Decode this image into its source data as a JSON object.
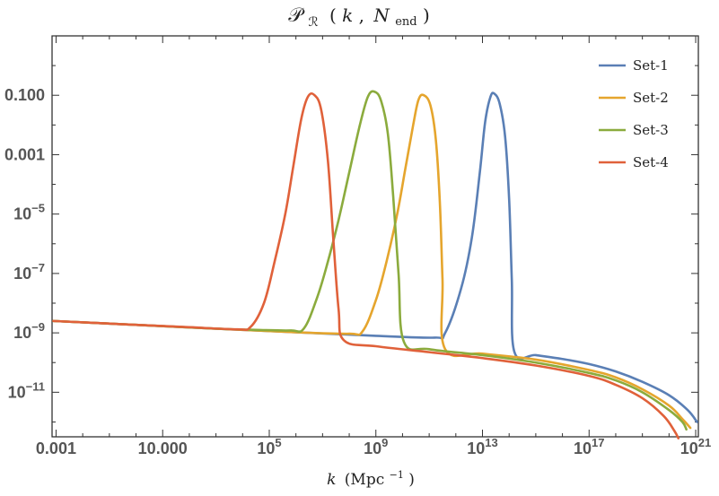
{
  "chart_data": {
    "type": "line",
    "title_math": {
      "main": "𝒫",
      "sub": "ℛ",
      "args_open": "(",
      "k": "k",
      "comma": ",",
      "N": "N",
      "N_sub": "end",
      "args_close": ")"
    },
    "xlabel": {
      "var": "k",
      "unit": "(Mpc",
      "exp": "−1",
      "close": ")"
    },
    "x_scale": "log",
    "y_scale": "log",
    "xlim_log10": [
      -3.15,
      21.1
    ],
    "ylim_log10": [
      -12.5,
      1.0
    ],
    "x_ticks": [
      {
        "log10": -3,
        "label": "0.001"
      },
      {
        "log10": 1,
        "label": "10.000"
      },
      {
        "log10": 5,
        "base": "10",
        "exp": "5"
      },
      {
        "log10": 9,
        "base": "10",
        "exp": "9"
      },
      {
        "log10": 13,
        "base": "10",
        "exp": "13"
      },
      {
        "log10": 17,
        "base": "10",
        "exp": "17"
      },
      {
        "log10": 21,
        "base": "10",
        "exp": "21"
      }
    ],
    "y_ticks": [
      {
        "log10": -1,
        "label": "0.100"
      },
      {
        "log10": -3,
        "label": "0.001"
      },
      {
        "log10": -5,
        "base": "10",
        "exp": "−5"
      },
      {
        "log10": -7,
        "base": "10",
        "exp": "−7"
      },
      {
        "log10": -9,
        "base": "10",
        "exp": "−9"
      },
      {
        "log10": -11,
        "base": "10",
        "exp": "−11"
      }
    ],
    "grid": false,
    "legend_position": "top-right",
    "series": [
      {
        "name": "Set-1",
        "color": "#5a7fb5",
        "points_log10": [
          [
            -3.1,
            -8.6
          ],
          [
            0,
            -8.73
          ],
          [
            3,
            -8.86
          ],
          [
            6,
            -8.98
          ],
          [
            9,
            -9.1
          ],
          [
            11.2,
            -9.16
          ],
          [
            11.6,
            -9.0
          ],
          [
            12.2,
            -7.5
          ],
          [
            12.6,
            -5.8
          ],
          [
            12.9,
            -3.6
          ],
          [
            13.1,
            -1.9
          ],
          [
            13.3,
            -1.05
          ],
          [
            13.45,
            -0.95
          ],
          [
            13.65,
            -1.3
          ],
          [
            13.85,
            -2.4
          ],
          [
            14.0,
            -4.5
          ],
          [
            14.1,
            -7.2
          ],
          [
            14.2,
            -9.65
          ],
          [
            15,
            -9.75
          ],
          [
            16,
            -9.88
          ],
          [
            17,
            -10.05
          ],
          [
            18,
            -10.3
          ],
          [
            19,
            -10.65
          ],
          [
            20,
            -11.1
          ],
          [
            20.7,
            -11.6
          ],
          [
            21.05,
            -12.0
          ]
        ]
      },
      {
        "name": "Set-2",
        "color": "#e5a52d",
        "points_log10": [
          [
            -3.1,
            -8.6
          ],
          [
            0,
            -8.73
          ],
          [
            3,
            -8.86
          ],
          [
            6,
            -8.98
          ],
          [
            8.0,
            -9.03
          ],
          [
            8.5,
            -8.95
          ],
          [
            9.0,
            -7.9
          ],
          [
            9.4,
            -6.6
          ],
          [
            9.8,
            -5.0
          ],
          [
            10.1,
            -3.5
          ],
          [
            10.4,
            -2.0
          ],
          [
            10.6,
            -1.15
          ],
          [
            10.8,
            -1.0
          ],
          [
            11.05,
            -1.35
          ],
          [
            11.25,
            -2.5
          ],
          [
            11.4,
            -4.6
          ],
          [
            11.5,
            -7.2
          ],
          [
            11.6,
            -9.55
          ],
          [
            13,
            -9.7
          ],
          [
            15,
            -9.9
          ],
          [
            17,
            -10.25
          ],
          [
            18,
            -10.5
          ],
          [
            19,
            -10.9
          ],
          [
            20,
            -11.45
          ],
          [
            20.5,
            -11.9
          ],
          [
            20.8,
            -12.2
          ]
        ]
      },
      {
        "name": "Set-3",
        "color": "#8bab3d",
        "points_log10": [
          [
            -3.1,
            -8.6
          ],
          [
            0,
            -8.73
          ],
          [
            3,
            -8.86
          ],
          [
            4.5,
            -8.9
          ],
          [
            5.8,
            -8.92
          ],
          [
            6.3,
            -8.85
          ],
          [
            6.8,
            -7.8
          ],
          [
            7.2,
            -6.6
          ],
          [
            7.6,
            -5.2
          ],
          [
            8.0,
            -3.6
          ],
          [
            8.4,
            -2.0
          ],
          [
            8.7,
            -1.05
          ],
          [
            8.95,
            -0.88
          ],
          [
            9.2,
            -1.2
          ],
          [
            9.45,
            -2.3
          ],
          [
            9.65,
            -4.4
          ],
          [
            9.85,
            -7.0
          ],
          [
            10.05,
            -9.3
          ],
          [
            11,
            -9.55
          ],
          [
            13,
            -9.75
          ],
          [
            15,
            -10.0
          ],
          [
            17,
            -10.35
          ],
          [
            18,
            -10.6
          ],
          [
            19,
            -11.0
          ],
          [
            20,
            -11.6
          ],
          [
            20.5,
            -12.0
          ],
          [
            20.65,
            -12.25
          ]
        ]
      },
      {
        "name": "Set-4",
        "color": "#e0613a",
        "points_log10": [
          [
            -3.1,
            -8.6
          ],
          [
            0,
            -8.73
          ],
          [
            2,
            -8.81
          ],
          [
            3.8,
            -8.88
          ],
          [
            4.3,
            -8.8
          ],
          [
            4.8,
            -8.0
          ],
          [
            5.2,
            -6.6
          ],
          [
            5.6,
            -5.0
          ],
          [
            5.9,
            -3.4
          ],
          [
            6.2,
            -1.8
          ],
          [
            6.45,
            -1.05
          ],
          [
            6.7,
            -1.0
          ],
          [
            6.95,
            -1.5
          ],
          [
            7.2,
            -3.2
          ],
          [
            7.4,
            -5.8
          ],
          [
            7.6,
            -8.2
          ],
          [
            7.8,
            -9.25
          ],
          [
            9,
            -9.45
          ],
          [
            11,
            -9.65
          ],
          [
            13,
            -9.85
          ],
          [
            15,
            -10.1
          ],
          [
            17,
            -10.45
          ],
          [
            18,
            -10.75
          ],
          [
            19,
            -11.2
          ],
          [
            19.8,
            -11.8
          ],
          [
            20.2,
            -12.3
          ],
          [
            20.35,
            -12.55
          ]
        ]
      }
    ]
  }
}
